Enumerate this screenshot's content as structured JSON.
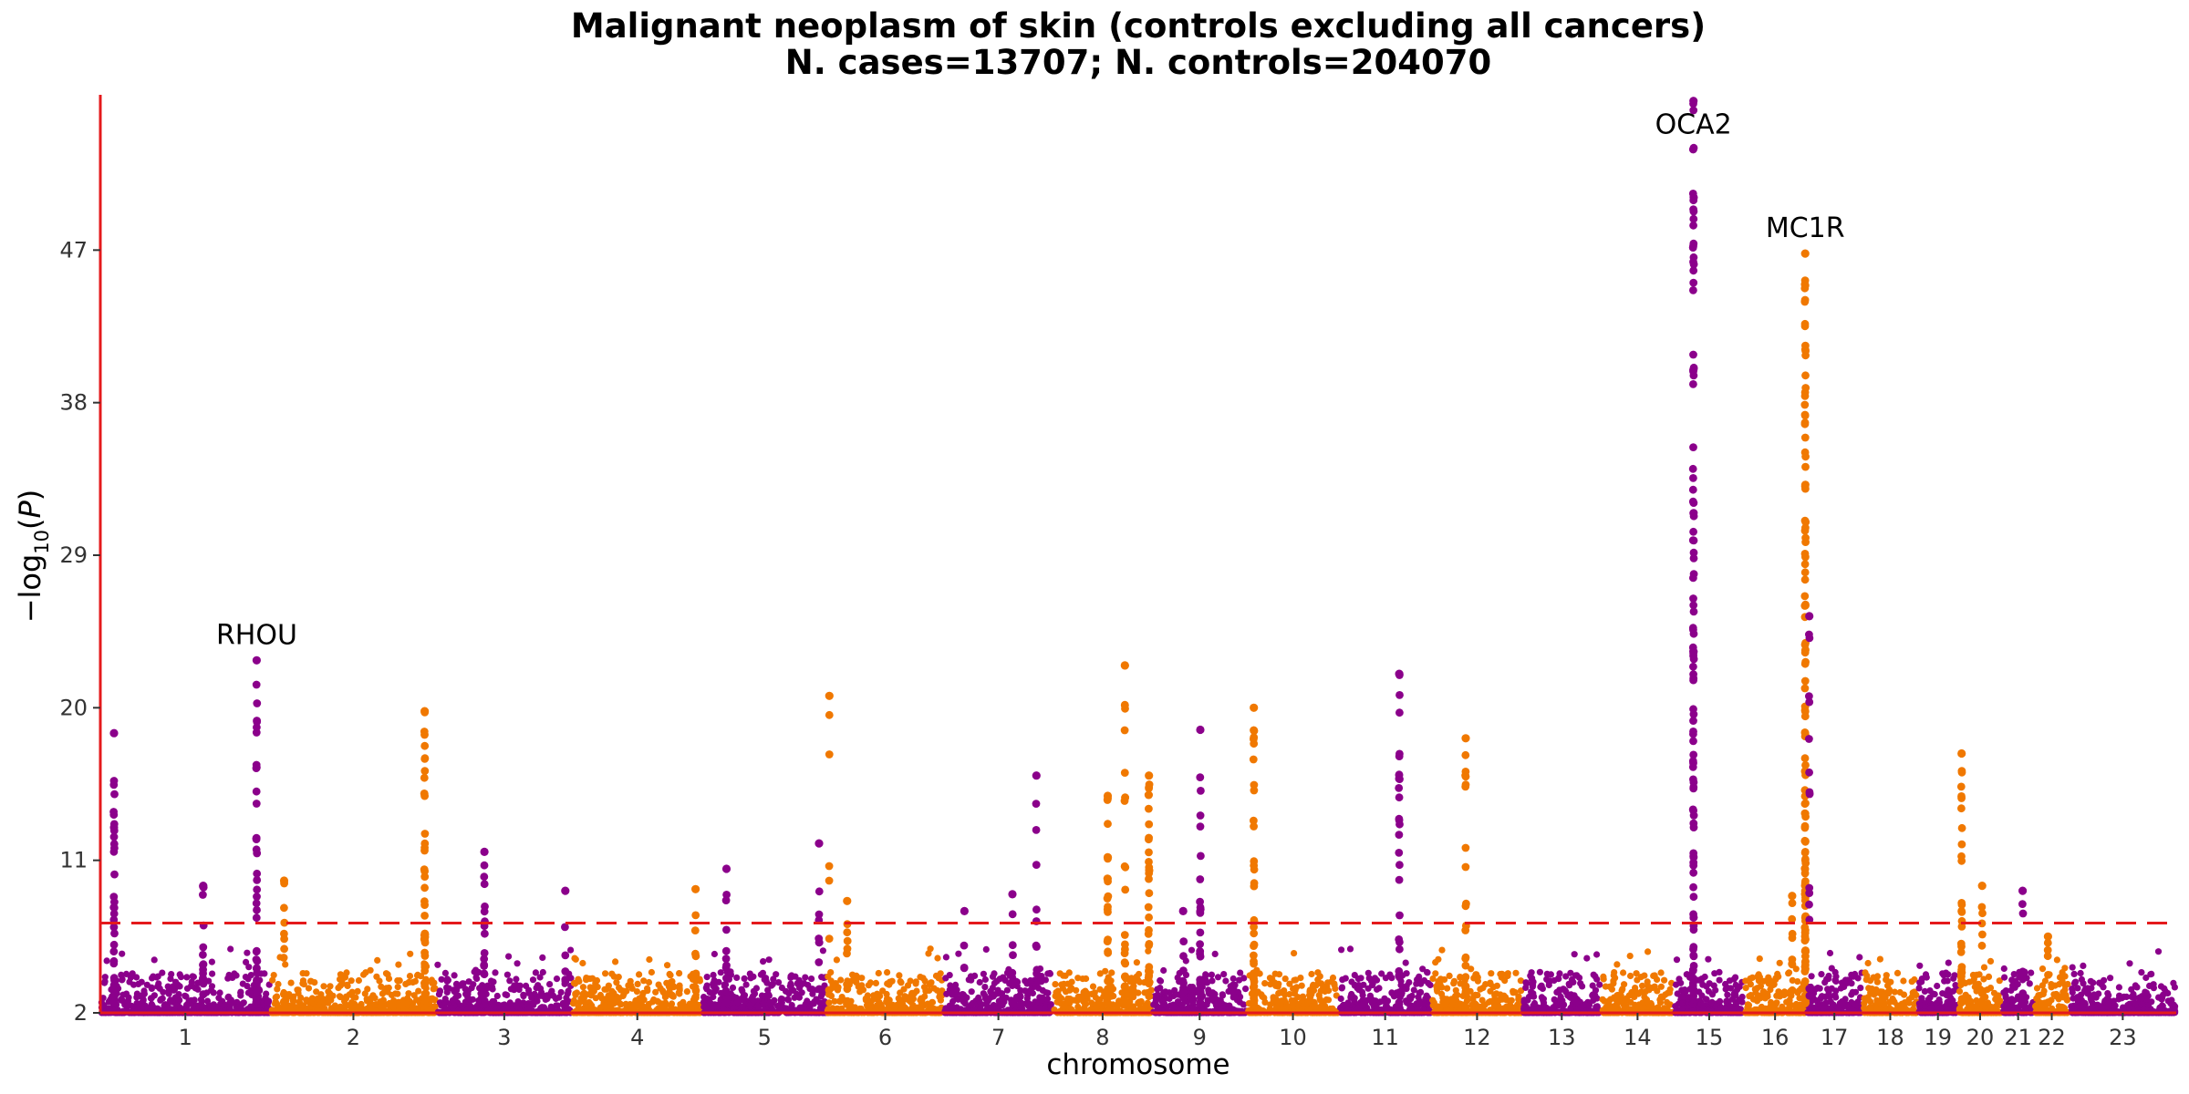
{
  "chart_data": {
    "type": "scatter",
    "title": "Malignant neoplasm of skin (controls excluding all cancers)",
    "subtitle": "N. cases=13707; N. controls=204070",
    "xlabel": "chromosome",
    "ylabel": "−log10(P)",
    "ylim": [
      2,
      56
    ],
    "yticks": [
      2,
      11,
      20,
      29,
      38,
      47
    ],
    "significance_line": 7.3,
    "colors": {
      "odd": "#8B008B",
      "even": "#F07800",
      "threshold": "#E41A1C",
      "axis": "#E41A1C"
    },
    "chromosomes": [
      {
        "label": "1",
        "start": 0,
        "end": 248
      },
      {
        "label": "2",
        "start": 248,
        "end": 490
      },
      {
        "label": "3",
        "start": 490,
        "end": 688
      },
      {
        "label": "4",
        "start": 688,
        "end": 878
      },
      {
        "label": "5",
        "start": 878,
        "end": 1059
      },
      {
        "label": "6",
        "start": 1059,
        "end": 1230
      },
      {
        "label": "7",
        "start": 1230,
        "end": 1389
      },
      {
        "label": "8",
        "start": 1389,
        "end": 1534
      },
      {
        "label": "9",
        "start": 1534,
        "end": 1672
      },
      {
        "label": "10",
        "start": 1672,
        "end": 1806
      },
      {
        "label": "11",
        "start": 1806,
        "end": 1941
      },
      {
        "label": "12",
        "start": 1941,
        "end": 2074
      },
      {
        "label": "13",
        "start": 2074,
        "end": 2188
      },
      {
        "label": "14",
        "start": 2188,
        "end": 2295
      },
      {
        "label": "15",
        "start": 2295,
        "end": 2397
      },
      {
        "label": "16",
        "start": 2397,
        "end": 2487
      },
      {
        "label": "17",
        "start": 2487,
        "end": 2570
      },
      {
        "label": "18",
        "start": 2570,
        "end": 2650
      },
      {
        "label": "19",
        "start": 2650,
        "end": 2709
      },
      {
        "label": "20",
        "start": 2709,
        "end": 2773
      },
      {
        "label": "21",
        "start": 2773,
        "end": 2820
      },
      {
        "label": "22",
        "start": 2820,
        "end": 2871
      },
      {
        "label": "23",
        "start": 2871,
        "end": 3027
      }
    ],
    "peaks": [
      {
        "chrom": "1",
        "pos": 20,
        "max": 18.5,
        "n": 40
      },
      {
        "chrom": "1",
        "pos": 150,
        "max": 9.5,
        "n": 16
      },
      {
        "chrom": "1",
        "pos": 228,
        "max": 22.8,
        "n": 45
      },
      {
        "chrom": "2",
        "pos": 20,
        "max": 9.8,
        "n": 12
      },
      {
        "chrom": "2",
        "pos": 225,
        "max": 19.8,
        "n": 45
      },
      {
        "chrom": "3",
        "pos": 70,
        "max": 11.5,
        "n": 20
      },
      {
        "chrom": "3",
        "pos": 188,
        "max": 9.2,
        "n": 6
      },
      {
        "chrom": "4",
        "pos": 180,
        "max": 9.3,
        "n": 10
      },
      {
        "chrom": "5",
        "pos": 35,
        "max": 10.5,
        "n": 12
      },
      {
        "chrom": "5",
        "pos": 170,
        "max": 12.0,
        "n": 8
      },
      {
        "chrom": "6",
        "pos": 4,
        "max": 20.7,
        "n": 6
      },
      {
        "chrom": "6",
        "pos": 30,
        "max": 8.6,
        "n": 12
      },
      {
        "chrom": "7",
        "pos": 30,
        "max": 8.0,
        "n": 4
      },
      {
        "chrom": "7",
        "pos": 100,
        "max": 9.0,
        "n": 8
      },
      {
        "chrom": "7",
        "pos": 135,
        "max": 16.0,
        "n": 10
      },
      {
        "chrom": "8",
        "pos": 80,
        "max": 14.8,
        "n": 25
      },
      {
        "chrom": "8",
        "pos": 105,
        "max": 22.5,
        "n": 25
      },
      {
        "chrom": "8",
        "pos": 140,
        "max": 16.0,
        "n": 30
      },
      {
        "chrom": "9",
        "pos": 45,
        "max": 8.0,
        "n": 10
      },
      {
        "chrom": "9",
        "pos": 70,
        "max": 18.7,
        "n": 30
      },
      {
        "chrom": "10",
        "pos": 10,
        "max": 20.0,
        "n": 40
      },
      {
        "chrom": "11",
        "pos": 88,
        "max": 22.0,
        "n": 30
      },
      {
        "chrom": "12",
        "pos": 50,
        "max": 18.2,
        "n": 20
      },
      {
        "chrom": "15",
        "pos": 28,
        "max": 55.8,
        "n": 120
      },
      {
        "chrom": "16",
        "pos": 70,
        "max": 8.9,
        "n": 8
      },
      {
        "chrom": "16",
        "pos": 89,
        "max": 46.8,
        "n": 130
      },
      {
        "chrom": "17",
        "pos": 5,
        "max": 25.4,
        "n": 14
      },
      {
        "chrom": "20",
        "pos": 5,
        "max": 17.3,
        "n": 28
      },
      {
        "chrom": "20",
        "pos": 35,
        "max": 9.5,
        "n": 8
      },
      {
        "chrom": "21",
        "pos": 30,
        "max": 9.2,
        "n": 6
      },
      {
        "chrom": "22",
        "pos": 20,
        "max": 6.5,
        "n": 6
      }
    ],
    "annotations": [
      {
        "label": "RHOU",
        "chrom": "1",
        "pos": 228,
        "y": 22.8
      },
      {
        "label": "OCA2",
        "chrom": "15",
        "pos": 28,
        "y": 55.8
      },
      {
        "label": "MC1R",
        "chrom": "16",
        "pos": 89,
        "y": 46.8
      }
    ]
  }
}
